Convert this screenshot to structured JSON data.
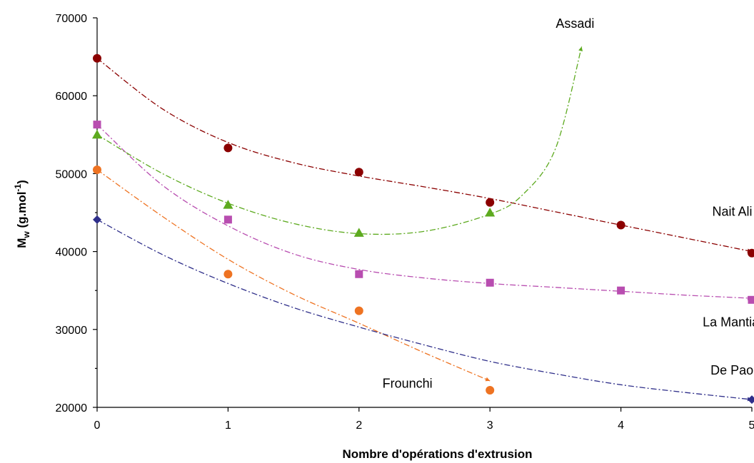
{
  "chart_data": {
    "type": "scatter",
    "title": "",
    "xlabel": "Nombre d'opérations d'extrusion",
    "ylabel": {
      "main": "M",
      "sub": "w",
      "unit_prefix": " (g.mol",
      "unit_sup": "-1",
      "unit_suffix": ")"
    },
    "xlim": [
      0,
      5
    ],
    "ylim": [
      20000,
      70000
    ],
    "x_ticks": [
      0,
      1,
      2,
      3,
      4,
      5
    ],
    "y_ticks": [
      20000,
      30000,
      40000,
      50000,
      60000,
      70000
    ],
    "x_tick_labels": [
      "0",
      "1",
      "2",
      "3",
      "4",
      "5"
    ],
    "y_tick_labels": [
      "20000",
      "30000",
      "40000",
      "50000",
      "60000",
      "70000"
    ],
    "grid": false,
    "legend": "none",
    "series": [
      {
        "name": "Nait Ali",
        "color": "#8B0000",
        "marker": "circle",
        "points": [
          [
            0,
            64800
          ],
          [
            1,
            53300
          ],
          [
            2,
            50200
          ],
          [
            3,
            46300
          ],
          [
            4,
            43400
          ],
          [
            5,
            39800
          ]
        ],
        "trend": [
          [
            0,
            64800
          ],
          [
            0.5,
            58300
          ],
          [
            1,
            54000
          ],
          [
            1.5,
            51400
          ],
          [
            2,
            49700
          ],
          [
            2.5,
            48300
          ],
          [
            3,
            46800
          ],
          [
            3.5,
            45100
          ],
          [
            4,
            43400
          ],
          [
            4.5,
            41700
          ],
          [
            5,
            40000
          ]
        ]
      },
      {
        "name": "La Mantia",
        "color": "#B84DB0",
        "marker": "square",
        "points": [
          [
            0,
            56300
          ],
          [
            1,
            44100
          ],
          [
            2,
            37100
          ],
          [
            3,
            36000
          ],
          [
            4,
            35000
          ],
          [
            5,
            33800
          ]
        ],
        "trend": [
          [
            0,
            56300
          ],
          [
            0.5,
            48500
          ],
          [
            1,
            43300
          ],
          [
            1.5,
            39700
          ],
          [
            2,
            37700
          ],
          [
            2.5,
            36600
          ],
          [
            3,
            35900
          ],
          [
            3.5,
            35400
          ],
          [
            4,
            34900
          ],
          [
            4.5,
            34400
          ],
          [
            5,
            34000
          ]
        ]
      },
      {
        "name": "Assadi",
        "color": "#5DAA1F",
        "marker": "triangle",
        "points": [
          [
            0,
            55000
          ],
          [
            1,
            46000
          ],
          [
            2,
            42400
          ],
          [
            3,
            45000
          ]
        ],
        "trend": [
          [
            0,
            55000
          ],
          [
            0.5,
            50000
          ],
          [
            1,
            46200
          ],
          [
            1.5,
            43600
          ],
          [
            2,
            42300
          ],
          [
            2.5,
            42600
          ],
          [
            3,
            44800
          ],
          [
            3.25,
            47300
          ],
          [
            3.5,
            53200
          ],
          [
            3.7,
            66300
          ]
        ]
      },
      {
        "name": "Frounchi",
        "color": "#EE7322",
        "marker": "circle",
        "points": [
          [
            0,
            50500
          ],
          [
            1,
            37100
          ],
          [
            2,
            32400
          ],
          [
            3,
            22200
          ]
        ],
        "trend": [
          [
            0,
            50500
          ],
          [
            0.5,
            44500
          ],
          [
            1,
            39000
          ],
          [
            1.5,
            34500
          ],
          [
            2,
            30800
          ],
          [
            2.5,
            27000
          ],
          [
            3,
            23400
          ]
        ]
      },
      {
        "name": "De Paoli",
        "color": "#2F2F8A",
        "marker": "diamond",
        "points": [
          [
            0,
            44100
          ],
          [
            5,
            21000
          ]
        ],
        "trend": [
          [
            0,
            44100
          ],
          [
            0.5,
            39600
          ],
          [
            1,
            35900
          ],
          [
            1.5,
            32800
          ],
          [
            2,
            30300
          ],
          [
            2.5,
            28000
          ],
          [
            3,
            25900
          ],
          [
            3.5,
            24300
          ],
          [
            4,
            22900
          ],
          [
            4.5,
            21900
          ],
          [
            5,
            21000
          ]
        ]
      }
    ],
    "annotations": [
      {
        "text": "Assadi",
        "x": 3.65,
        "y": 68700
      },
      {
        "text": "Nait Ali",
        "x": 4.85,
        "y": 44600
      },
      {
        "text": "La Mantia",
        "x": 4.84,
        "y": 30400
      },
      {
        "text": "De Paoli",
        "x": 4.87,
        "y": 24200
      },
      {
        "text": "Frounchi",
        "x": 2.37,
        "y": 22500
      }
    ]
  }
}
